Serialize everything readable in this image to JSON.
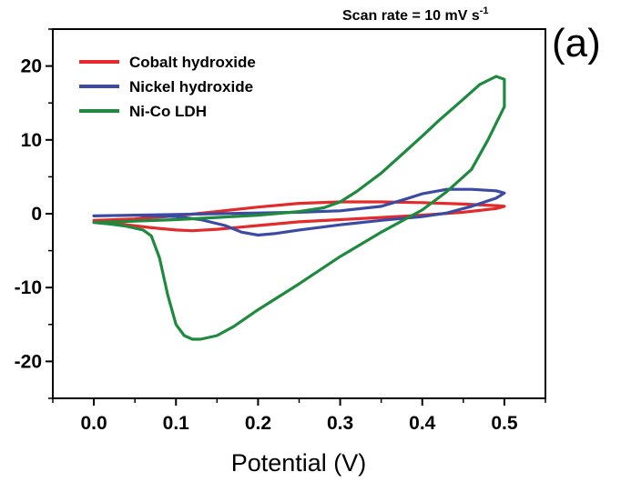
{
  "chart_data": {
    "type": "line",
    "panel_label": "(a)",
    "annotation": {
      "text": "Scan rate = 10 mV s",
      "superscript": "-1"
    },
    "xlabel": "Potential (V)",
    "ylabel": "",
    "xlim": [
      -0.05,
      0.55
    ],
    "ylim": [
      -25,
      25
    ],
    "xticks": [
      0.0,
      0.1,
      0.2,
      0.3,
      0.4,
      0.5
    ],
    "xtick_labels": [
      "0.0",
      "0.1",
      "0.2",
      "0.3",
      "0.4",
      "0.5"
    ],
    "yticks": [
      -20,
      -10,
      0,
      10,
      20
    ],
    "ytick_labels": [
      "-20",
      "-10",
      "0",
      "10",
      "20"
    ],
    "grid": false,
    "legend_position": "top-left",
    "series": [
      {
        "name": "Cobalt hydroxide",
        "color": "#e32b2b",
        "x": [
          0.0,
          0.05,
          0.1,
          0.15,
          0.2,
          0.25,
          0.3,
          0.35,
          0.4,
          0.45,
          0.49,
          0.5,
          0.49,
          0.45,
          0.4,
          0.35,
          0.3,
          0.25,
          0.2,
          0.15,
          0.12,
          0.1,
          0.07,
          0.04,
          0.02,
          0.0
        ],
        "y": [
          -0.9,
          -0.7,
          -0.3,
          0.3,
          0.9,
          1.4,
          1.6,
          1.6,
          1.5,
          1.3,
          1.1,
          1.0,
          0.7,
          0.2,
          -0.2,
          -0.5,
          -0.8,
          -1.1,
          -1.6,
          -2.1,
          -2.3,
          -2.2,
          -1.9,
          -1.5,
          -1.2,
          -0.9
        ]
      },
      {
        "name": "Nickel hydroxide",
        "color": "#3b4ba3",
        "x": [
          0.0,
          0.05,
          0.1,
          0.15,
          0.2,
          0.25,
          0.3,
          0.35,
          0.38,
          0.4,
          0.43,
          0.46,
          0.49,
          0.5,
          0.49,
          0.46,
          0.43,
          0.4,
          0.35,
          0.3,
          0.25,
          0.22,
          0.2,
          0.18,
          0.16,
          0.13,
          0.1,
          0.05,
          0.0
        ],
        "y": [
          -0.3,
          -0.2,
          -0.1,
          0.0,
          0.1,
          0.2,
          0.4,
          1.0,
          2.0,
          2.7,
          3.3,
          3.3,
          3.1,
          2.8,
          2.1,
          1.0,
          0.1,
          -0.4,
          -0.9,
          -1.5,
          -2.2,
          -2.7,
          -2.9,
          -2.5,
          -1.6,
          -0.8,
          -0.4,
          -0.2,
          -0.3
        ]
      },
      {
        "name": "Ni-Co LDH",
        "color": "#1d8a3e",
        "x": [
          0.0,
          0.05,
          0.1,
          0.15,
          0.2,
          0.25,
          0.28,
          0.3,
          0.32,
          0.35,
          0.38,
          0.4,
          0.42,
          0.45,
          0.47,
          0.49,
          0.5,
          0.5,
          0.48,
          0.46,
          0.43,
          0.4,
          0.35,
          0.3,
          0.25,
          0.2,
          0.17,
          0.15,
          0.13,
          0.12,
          0.11,
          0.1,
          0.09,
          0.08,
          0.07,
          0.06,
          0.04,
          0.02,
          0.0
        ],
        "y": [
          -1.2,
          -1.0,
          -0.8,
          -0.5,
          -0.2,
          0.3,
          0.8,
          1.6,
          3.0,
          5.5,
          8.5,
          10.5,
          12.6,
          15.5,
          17.5,
          18.6,
          18.2,
          14.5,
          10.0,
          6.0,
          3.0,
          0.5,
          -2.5,
          -5.8,
          -9.5,
          -13.0,
          -15.3,
          -16.5,
          -17.0,
          -17.0,
          -16.5,
          -15.0,
          -11.0,
          -6.0,
          -3.0,
          -2.2,
          -1.7,
          -1.4,
          -1.2
        ]
      }
    ]
  }
}
